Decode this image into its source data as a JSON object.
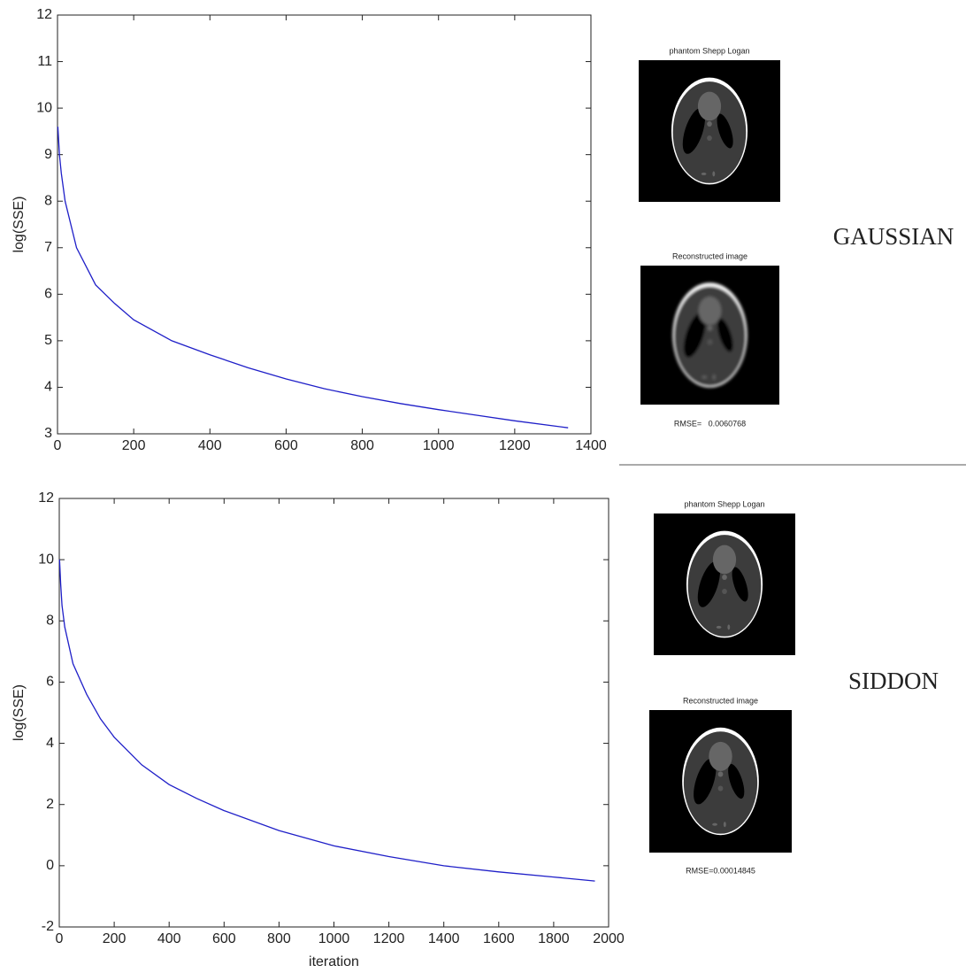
{
  "chart_data": [
    {
      "type": "line",
      "ylabel": "log(SSE)",
      "color": "#1f1fc8",
      "x": [
        1,
        5,
        10,
        20,
        50,
        100,
        150,
        200,
        300,
        400,
        500,
        600,
        700,
        800,
        900,
        1000,
        1100,
        1200,
        1340
      ],
      "values": [
        9.6,
        9.0,
        8.6,
        8.0,
        7.0,
        6.2,
        5.8,
        5.45,
        5.0,
        4.7,
        4.42,
        4.18,
        3.97,
        3.8,
        3.65,
        3.52,
        3.4,
        3.28,
        3.13
      ],
      "xlim": [
        0,
        1400
      ],
      "xticks": [
        0,
        200,
        400,
        600,
        800,
        1000,
        1200,
        1400
      ],
      "ylim": [
        3,
        12
      ],
      "yticks": [
        3,
        4,
        5,
        6,
        7,
        8,
        9,
        10,
        11,
        12
      ]
    },
    {
      "type": "line",
      "ylabel": "log(SSE)",
      "xlabel": "iteration",
      "color": "#1f1fc8",
      "x": [
        1,
        5,
        10,
        20,
        50,
        100,
        150,
        200,
        300,
        400,
        500,
        600,
        800,
        1000,
        1200,
        1400,
        1600,
        1800,
        1950
      ],
      "values": [
        10.0,
        9.2,
        8.5,
        7.8,
        6.6,
        5.6,
        4.8,
        4.2,
        3.3,
        2.65,
        2.2,
        1.8,
        1.15,
        0.65,
        0.3,
        0.0,
        -0.2,
        -0.37,
        -0.5
      ],
      "xlim": [
        0,
        2000
      ],
      "xticks": [
        0,
        200,
        400,
        600,
        800,
        1000,
        1200,
        1400,
        1600,
        1800,
        2000
      ],
      "ylim": [
        -2,
        12
      ],
      "yticks": [
        -2,
        0,
        2,
        4,
        6,
        8,
        10,
        12
      ]
    }
  ],
  "panels": [
    {
      "label": "GAUSSIAN",
      "images": [
        {
          "title": "phantom Shepp Logan"
        },
        {
          "title": "Reconstructed image"
        }
      ],
      "rmse": "RMSE=   0.0060768"
    },
    {
      "label": "SIDDON",
      "images": [
        {
          "title": "phantom Shepp Logan"
        },
        {
          "title": "Reconstructed image"
        }
      ],
      "rmse": "RMSE=0.00014845"
    }
  ]
}
